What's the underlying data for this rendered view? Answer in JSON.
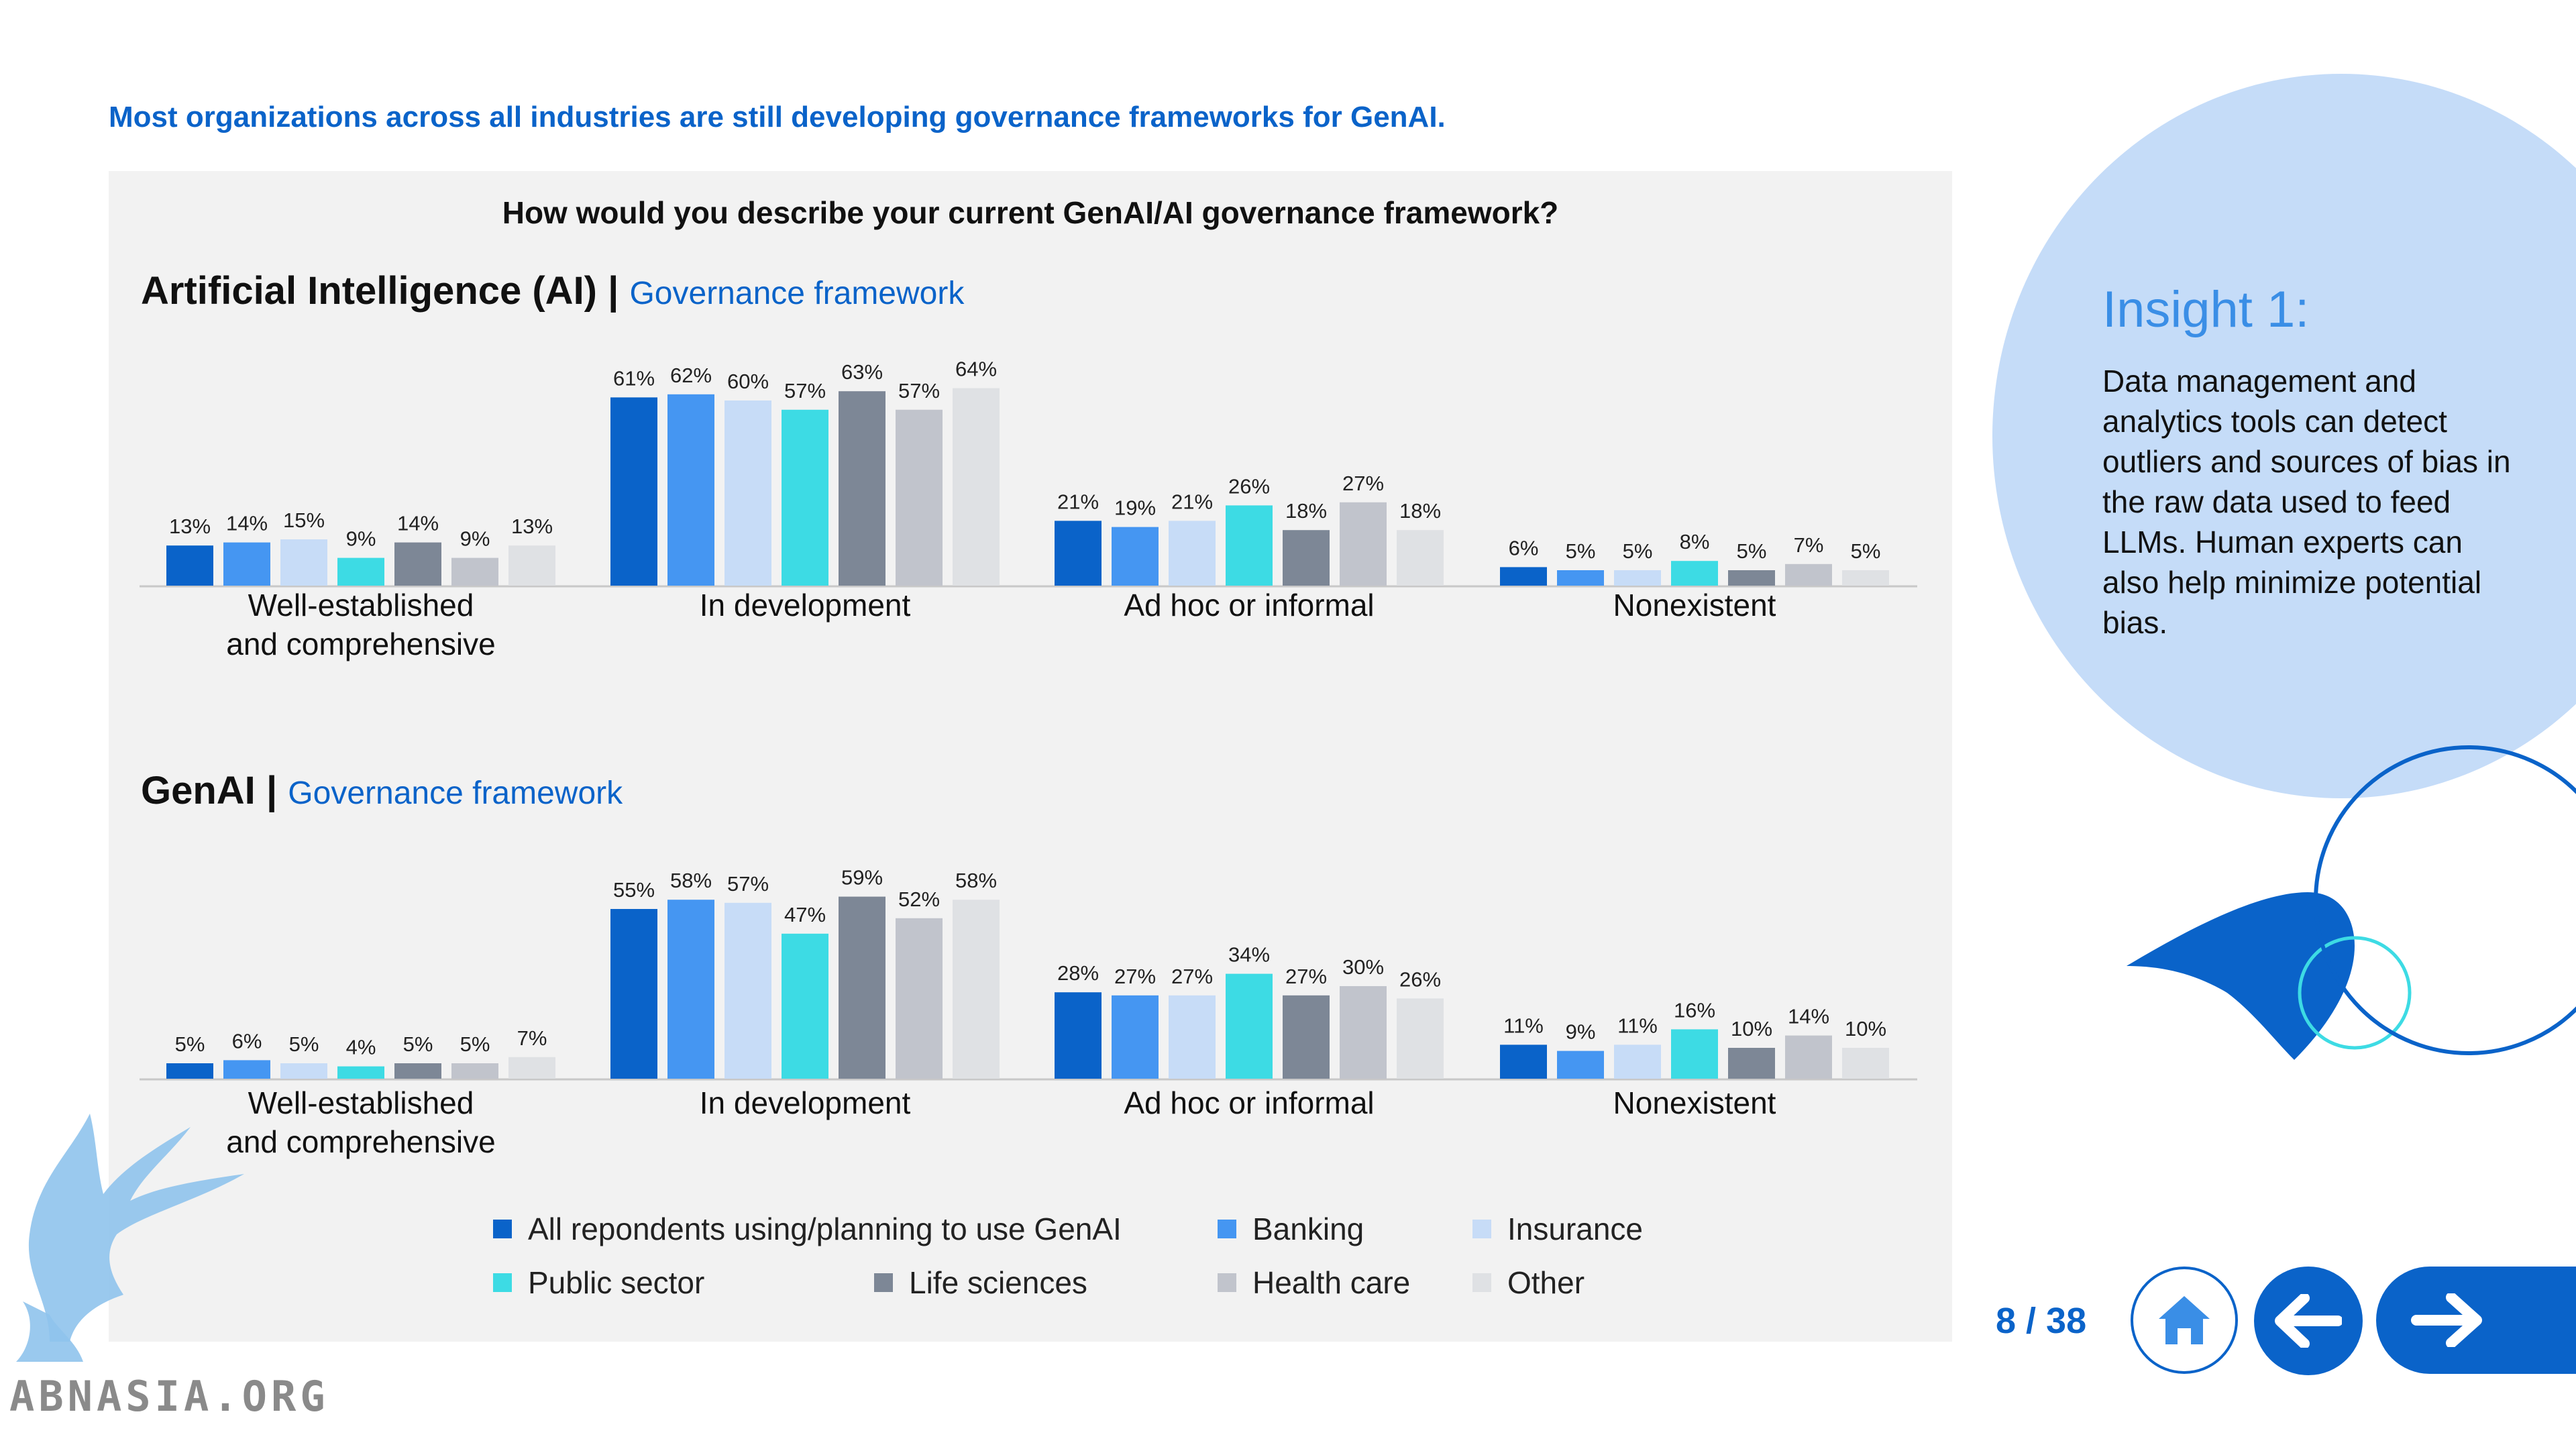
{
  "headline": "Most organizations across all industries are still developing governance frameworks for GenAI.",
  "question": "How would you describe your current GenAI/AI governance framework?",
  "colors": [
    "#0a63c9",
    "#4596f2",
    "#c7dcf7",
    "#3ddbe4",
    "#7d8796",
    "#c1c4cc",
    "#dfe1e4"
  ],
  "chart_data": [
    {
      "type": "bar",
      "title": "Artificial Intelligence (AI)",
      "subtitle": "Governance framework",
      "categories": [
        "Well-established and comprehensive",
        "In development",
        "Ad hoc or informal",
        "Nonexistent"
      ],
      "category_lines": [
        [
          "Well-established",
          "and comprehensive"
        ],
        [
          "In development"
        ],
        [
          "Ad hoc or informal"
        ],
        [
          "Nonexistent"
        ]
      ],
      "series": [
        {
          "name": "All repondents using/planning to use GenAI",
          "values": [
            13,
            61,
            21,
            6
          ]
        },
        {
          "name": "Banking",
          "values": [
            14,
            62,
            19,
            5
          ]
        },
        {
          "name": "Insurance",
          "values": [
            15,
            60,
            21,
            5
          ]
        },
        {
          "name": "Public sector",
          "values": [
            9,
            57,
            26,
            8
          ]
        },
        {
          "name": "Life sciences",
          "values": [
            14,
            63,
            18,
            5
          ]
        },
        {
          "name": "Health care",
          "values": [
            9,
            57,
            27,
            7
          ]
        },
        {
          "name": "Other",
          "values": [
            13,
            64,
            18,
            5
          ]
        }
      ],
      "unit": "%",
      "ylim": [
        0,
        70
      ],
      "grid": false
    },
    {
      "type": "bar",
      "title": "GenAI",
      "subtitle": "Governance framework",
      "categories": [
        "Well-established and comprehensive",
        "In development",
        "Ad hoc or informal",
        "Nonexistent"
      ],
      "category_lines": [
        [
          "Well-established",
          "and comprehensive"
        ],
        [
          "In development"
        ],
        [
          "Ad hoc or informal"
        ],
        [
          "Nonexistent"
        ]
      ],
      "series": [
        {
          "name": "All repondents using/planning to use GenAI",
          "values": [
            5,
            55,
            28,
            11
          ]
        },
        {
          "name": "Banking",
          "values": [
            6,
            58,
            27,
            9
          ]
        },
        {
          "name": "Insurance",
          "values": [
            5,
            57,
            27,
            11
          ]
        },
        {
          "name": "Public sector",
          "values": [
            4,
            47,
            34,
            16
          ]
        },
        {
          "name": "Life sciences",
          "values": [
            5,
            59,
            27,
            10
          ]
        },
        {
          "name": "Health care",
          "values": [
            5,
            52,
            30,
            14
          ]
        },
        {
          "name": "Other",
          "values": [
            7,
            58,
            26,
            10
          ]
        }
      ],
      "unit": "%",
      "ylim": [
        0,
        70
      ],
      "grid": false
    }
  ],
  "legend": [
    "All repondents using/planning to use GenAI",
    "Banking",
    "Insurance",
    "Public sector",
    "Life sciences",
    "Health care",
    "Other"
  ],
  "insight": {
    "title": "Insight 1:",
    "body": "Data management and analytics tools can detect outliers and sources of bias in the raw data used to feed LLMs. Human experts can also help minimize potential bias."
  },
  "nav": {
    "page": "8 / 38",
    "home_icon": "home-icon",
    "back_icon": "arrow-left-icon",
    "next_icon": "arrow-right-icon"
  },
  "watermark": "ABNASIA.ORG"
}
